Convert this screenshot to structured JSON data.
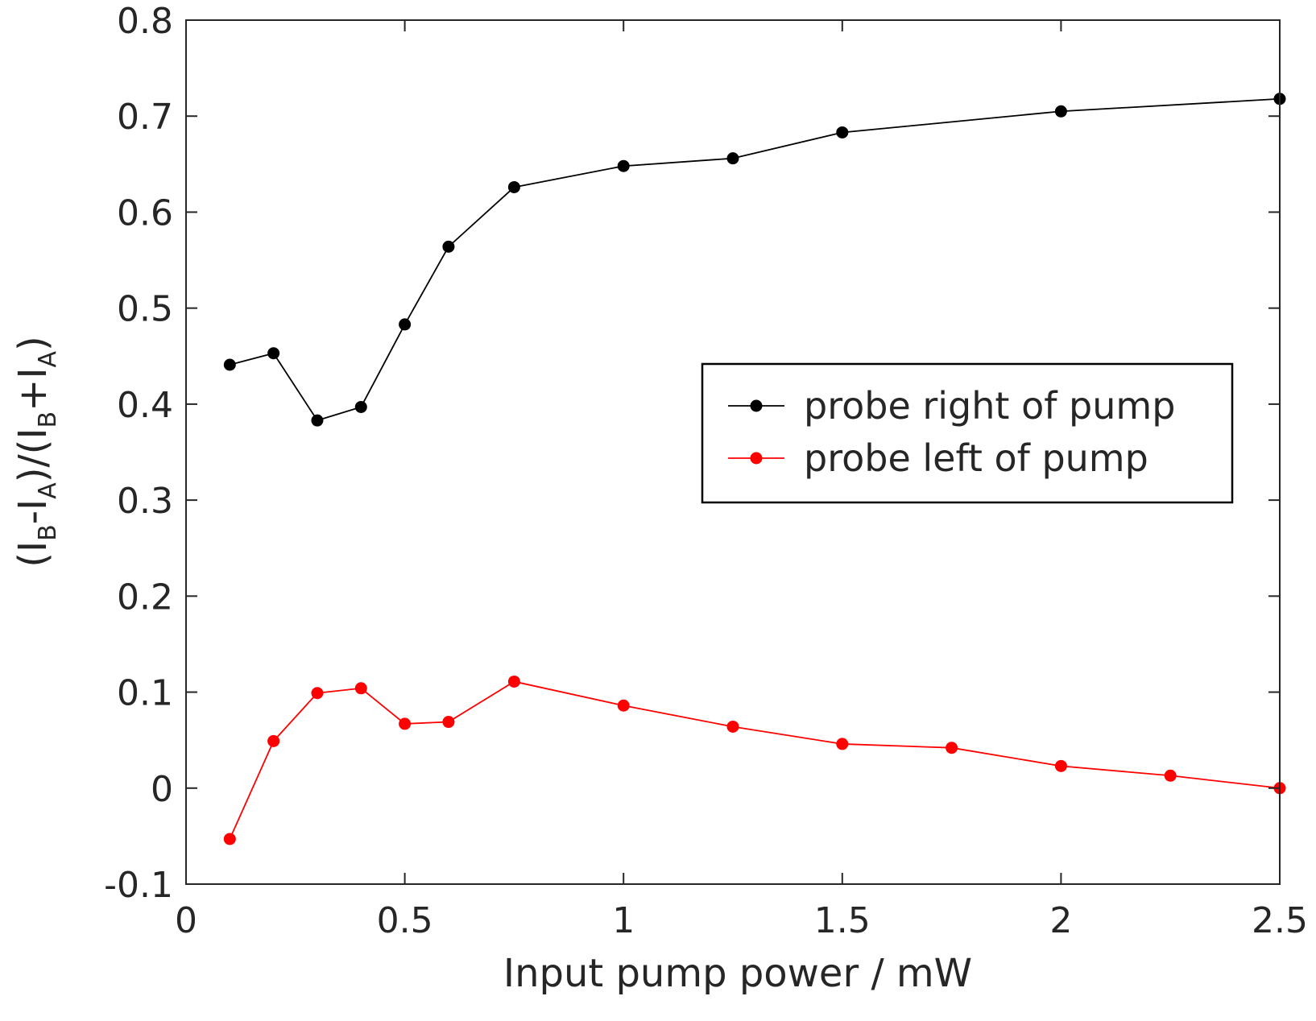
{
  "chart_data": {
    "type": "line",
    "title": "",
    "xlabel": "Input pump power / mW",
    "ylabel_parts": {
      "open1": "(I",
      "b1": "B",
      "minus": "-I",
      "a1": "A",
      "mid": ")/(I",
      "b2": "B",
      "plus": "+I",
      "a2": "A",
      "close": ")"
    },
    "xlim": [
      0,
      2.5
    ],
    "ylim": [
      -0.1,
      0.8
    ],
    "x_ticks": [
      0,
      0.5,
      1,
      1.5,
      2,
      2.5
    ],
    "x_tick_labels": [
      "0",
      "0.5",
      "1",
      "1.5",
      "2",
      "2.5"
    ],
    "y_ticks": [
      -0.1,
      0,
      0.1,
      0.2,
      0.3,
      0.4,
      0.5,
      0.6,
      0.7,
      0.8
    ],
    "y_tick_labels": [
      "-0.1",
      "0",
      "0.1",
      "0.2",
      "0.3",
      "0.4",
      "0.5",
      "0.6",
      "0.7",
      "0.8"
    ],
    "grid": false,
    "legend_position": "center-right",
    "series": [
      {
        "name": "probe right of pump",
        "color": "#000000",
        "marker": "circle",
        "x": [
          0.1,
          0.2,
          0.3,
          0.4,
          0.5,
          0.6,
          0.75,
          1.0,
          1.25,
          1.5,
          2.0,
          2.5
        ],
        "y": [
          0.441,
          0.453,
          0.383,
          0.397,
          0.483,
          0.564,
          0.626,
          0.648,
          0.656,
          0.683,
          0.705,
          0.718
        ]
      },
      {
        "name": "probe left of pump",
        "color": "#ff0000",
        "marker": "circle",
        "x": [
          0.1,
          0.2,
          0.3,
          0.4,
          0.5,
          0.6,
          0.75,
          1.0,
          1.25,
          1.5,
          1.75,
          2.0,
          2.25,
          2.5
        ],
        "y": [
          -0.053,
          0.049,
          0.099,
          0.104,
          0.067,
          0.069,
          0.111,
          0.086,
          0.064,
          0.046,
          0.042,
          0.023,
          0.013,
          0.0
        ]
      }
    ]
  }
}
